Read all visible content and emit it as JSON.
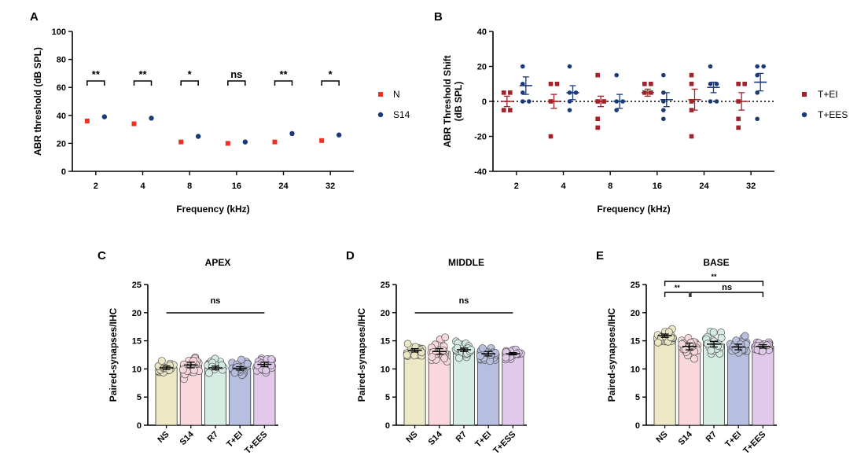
{
  "panels": {
    "A": {
      "letter": "A"
    },
    "B": {
      "letter": "B"
    },
    "C": {
      "letter": "C"
    },
    "D": {
      "letter": "D"
    },
    "E": {
      "letter": "E"
    }
  },
  "chart_data": [
    {
      "id": "A",
      "type": "scatter",
      "title": "",
      "xlabel": "Frequency (kHz)",
      "ylabel": "ABR threshold (dB SPL)",
      "categories": [
        "2",
        "4",
        "8",
        "16",
        "24",
        "32"
      ],
      "ylim": [
        0,
        100
      ],
      "yticks": [
        0,
        20,
        40,
        60,
        80,
        100
      ],
      "series": [
        {
          "name": "N",
          "color": "#ee3124",
          "marker": "square",
          "values": [
            36,
            34,
            21,
            20,
            21,
            22
          ]
        },
        {
          "name": "S14",
          "color": "#1b3a7a",
          "marker": "circle",
          "values": [
            39,
            38,
            25,
            21,
            27,
            26
          ]
        }
      ],
      "significance": [
        "**",
        "**",
        "*",
        "ns",
        "**",
        "*"
      ],
      "legend": "right"
    },
    {
      "id": "B",
      "type": "scatter",
      "title": "",
      "xlabel": "Frequency (kHz)",
      "ylabel": "ABR Threshold Shift (dB SPL)",
      "ylabel_lines": [
        "ABR Threshold Shift",
        "(dB SPL)"
      ],
      "categories": [
        "2",
        "4",
        "8",
        "16",
        "24",
        "32"
      ],
      "ylim": [
        -40,
        40
      ],
      "yticks": [
        -40,
        -20,
        0,
        20,
        40
      ],
      "reference_line": 0,
      "series": [
        {
          "name": "T+EI",
          "color": "#a3222a",
          "marker": "square",
          "mean": [
            0,
            0,
            0,
            5,
            1,
            0
          ],
          "sem": [
            3,
            4,
            3,
            2,
            6,
            5
          ],
          "points": [
            [
              5,
              5,
              -5,
              -5
            ],
            [
              10,
              10,
              0,
              -20
            ],
            [
              15,
              0,
              0,
              -10,
              -15
            ],
            [
              10,
              10,
              5,
              5
            ],
            [
              15,
              10,
              0,
              -5,
              -20
            ],
            [
              10,
              10,
              0,
              -10,
              -15
            ]
          ]
        },
        {
          "name": "T+EES",
          "color": "#1b3a7a",
          "marker": "circle",
          "mean": [
            9,
            5,
            0,
            1,
            8,
            11
          ],
          "sem": [
            5,
            4,
            4,
            4,
            3,
            5
          ],
          "points": [
            [
              20,
              10,
              5,
              0,
              0
            ],
            [
              20,
              5,
              5,
              0,
              -5
            ],
            [
              15,
              0,
              0,
              -5
            ],
            [
              15,
              5,
              0,
              -5,
              -10
            ],
            [
              20,
              10,
              10,
              0,
              0
            ],
            [
              20,
              20,
              15,
              5,
              -10
            ]
          ]
        }
      ],
      "legend": "right"
    },
    {
      "id": "C",
      "type": "bar",
      "title": "APEX",
      "xlabel": "",
      "ylabel": "Paired-synapses/IHC",
      "categories": [
        "NS",
        "S14",
        "R7",
        "T+EI",
        "T+EES"
      ],
      "values": [
        10.2,
        10.7,
        10.2,
        10.1,
        10.8
      ],
      "sem": [
        0.3,
        0.5,
        0.3,
        0.3,
        0.4
      ],
      "spread": [
        1.1,
        1.6,
        1.1,
        1.1,
        1.3
      ],
      "ylim": [
        0,
        25
      ],
      "yticks": [
        0,
        5,
        10,
        15,
        20,
        25
      ],
      "colors": [
        "#ece7c4",
        "#f9d7dc",
        "#d5ece3",
        "#b7bfe0",
        "#e2c9ec"
      ],
      "significance": [
        {
          "from": 0,
          "to": 4,
          "label": "ns"
        }
      ]
    },
    {
      "id": "D",
      "type": "bar",
      "title": "MIDDLE",
      "xlabel": "",
      "ylabel": "Paired-synapses/IHC",
      "categories": [
        "NS",
        "S14",
        "R7",
        "T+EI",
        "T+ESS"
      ],
      "values": [
        13.3,
        13.1,
        13.4,
        12.7,
        12.7
      ],
      "sem": [
        0.3,
        0.5,
        0.3,
        0.4,
        0.2
      ],
      "spread": [
        1.2,
        1.8,
        1.1,
        1.5,
        0.8
      ],
      "ylim": [
        0,
        25
      ],
      "yticks": [
        0,
        5,
        10,
        15,
        20,
        25
      ],
      "colors": [
        "#ece7c4",
        "#f9d7dc",
        "#d5ece3",
        "#b7bfe0",
        "#e2c9ec"
      ],
      "significance": [
        {
          "from": 0,
          "to": 4,
          "label": "ns"
        }
      ]
    },
    {
      "id": "E",
      "type": "bar",
      "title": "BASE",
      "xlabel": "",
      "ylabel": "Paired-synapses/IHC",
      "categories": [
        "NS",
        "S14",
        "R7",
        "T+EI",
        "T+EES"
      ],
      "values": [
        15.9,
        14.0,
        14.4,
        13.9,
        14.0
      ],
      "sem": [
        0.3,
        0.6,
        0.5,
        0.5,
        0.3
      ],
      "spread": [
        1.0,
        1.8,
        1.8,
        1.6,
        0.8
      ],
      "ylim": [
        0,
        25
      ],
      "yticks": [
        0,
        5,
        10,
        15,
        20,
        25
      ],
      "colors": [
        "#ece7c4",
        "#f9d7dc",
        "#d5ece3",
        "#b7bfe0",
        "#e2c9ec"
      ],
      "significance": [
        {
          "from": 0,
          "to": 4,
          "label": "**"
        },
        {
          "from": 0,
          "to": 1,
          "label": "**"
        },
        {
          "from": 1,
          "to": 4,
          "label": "ns"
        }
      ]
    }
  ]
}
